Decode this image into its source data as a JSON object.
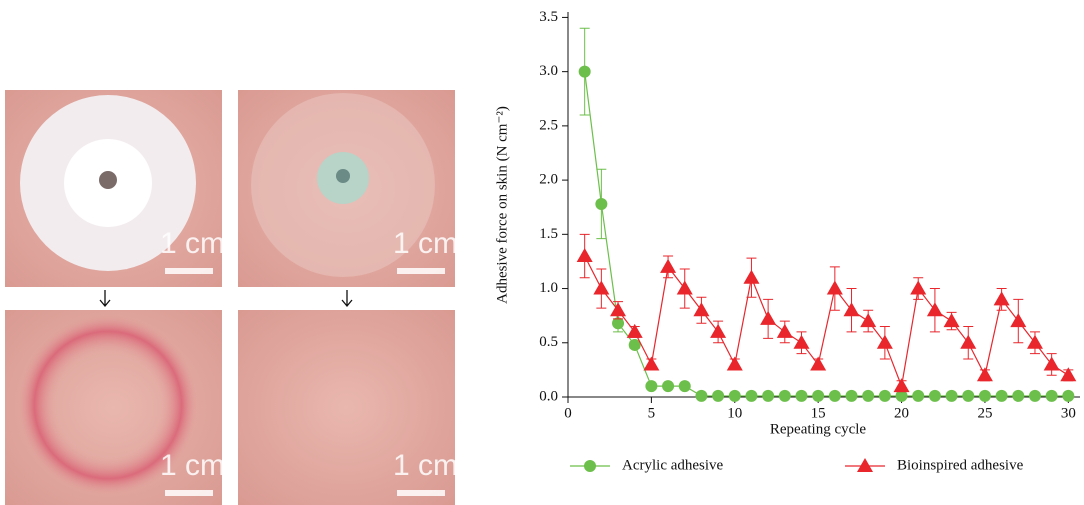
{
  "chart_data": {
    "type": "line",
    "x_label": "Repeating cycle",
    "y_label": "Adhesive force on skin (N cm⁻²)",
    "x": [
      1,
      2,
      3,
      4,
      5,
      6,
      7,
      8,
      9,
      10,
      11,
      12,
      13,
      14,
      15,
      16,
      17,
      18,
      19,
      20,
      21,
      22,
      23,
      24,
      25,
      26,
      27,
      28,
      29,
      30
    ],
    "series": [
      {
        "name": "Acrylic adhesive",
        "color": "#6cbf4a",
        "marker": "circle",
        "values": [
          3.0,
          1.78,
          0.68,
          0.48,
          0.1,
          0.1,
          0.1,
          0.01,
          0.01,
          0.01,
          0.01,
          0.01,
          0.01,
          0.01,
          0.01,
          0.01,
          0.01,
          0.01,
          0.01,
          0.01,
          0.01,
          0.01,
          0.01,
          0.01,
          0.01,
          0.01,
          0.01,
          0.01,
          0.01,
          0.01
        ],
        "errors": [
          0.4,
          0.32,
          0.08,
          0.03,
          0,
          0,
          0,
          0,
          0,
          0,
          0,
          0,
          0,
          0,
          0,
          0,
          0,
          0,
          0,
          0,
          0,
          0,
          0,
          0,
          0,
          0,
          0,
          0,
          0,
          0
        ]
      },
      {
        "name": "Bioinspired adhesive",
        "color": "#e8262c",
        "marker": "triangle",
        "values": [
          1.3,
          1.0,
          0.8,
          0.6,
          0.3,
          1.2,
          1.0,
          0.8,
          0.6,
          0.3,
          1.1,
          0.72,
          0.6,
          0.5,
          0.3,
          1.0,
          0.8,
          0.7,
          0.5,
          0.1,
          1.0,
          0.8,
          0.7,
          0.5,
          0.2,
          0.9,
          0.7,
          0.5,
          0.3,
          0.2
        ],
        "errors": [
          0.2,
          0.18,
          0.08,
          0.05,
          0.05,
          0.1,
          0.18,
          0.12,
          0.1,
          0.05,
          0.18,
          0.18,
          0.1,
          0.1,
          0.05,
          0.2,
          0.2,
          0.1,
          0.15,
          0.05,
          0.1,
          0.2,
          0.08,
          0.15,
          0.05,
          0.1,
          0.2,
          0.1,
          0.1,
          0.05
        ]
      }
    ],
    "xlim": [
      0,
      30.7
    ],
    "xticks": [
      0,
      5,
      10,
      15,
      20,
      25,
      30
    ],
    "ylim": [
      0,
      3.55
    ],
    "yticks": [
      {
        "value": 0,
        "label": "0.0"
      },
      {
        "value": 0.5,
        "label": "0.5"
      },
      {
        "value": 1,
        "label": "1.0"
      },
      {
        "value": 1.5,
        "label": "1.5"
      },
      {
        "value": 2,
        "label": "2.0"
      },
      {
        "value": 2.5,
        "label": "2.5"
      },
      {
        "value": 3,
        "label": "3.0"
      },
      {
        "value": 3.5,
        "label": "3.5"
      }
    ],
    "grid": false,
    "legend": "bottom"
  },
  "photos": {
    "scale_labels": [
      "1 cm",
      "1 cm",
      "1 cm",
      "1 cm"
    ]
  }
}
